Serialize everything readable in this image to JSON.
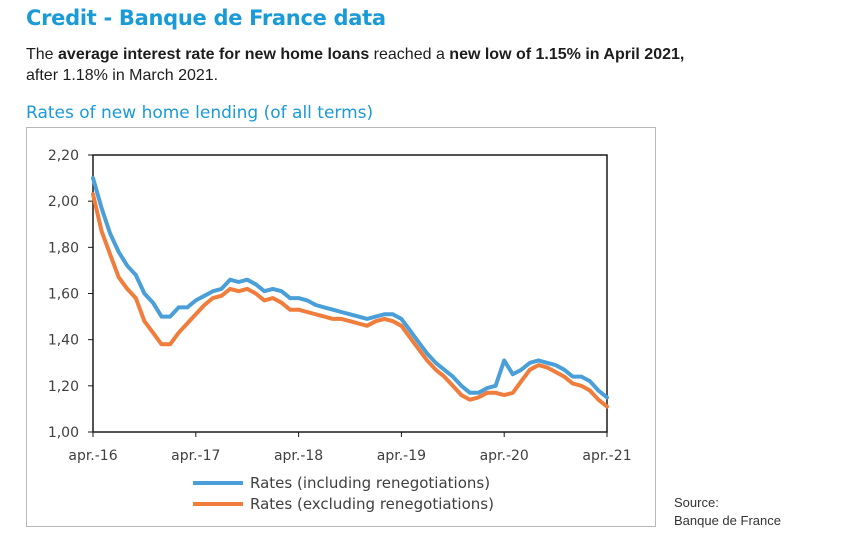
{
  "header": {
    "title": "Credit - Banque de France data",
    "lead_1": "The ",
    "lead_bold_1": "average interest rate for new home loans",
    "lead_2": "  reached a ",
    "lead_bold_2": "new low of 1.15% in April 2021,",
    "lead_3": "after 1.18% in March 2021."
  },
  "source": {
    "line1": "Source:",
    "line2": "Banque de France"
  },
  "chart_data": {
    "type": "line",
    "title": "Rates of new home lending (of all terms)",
    "xlabel": "",
    "ylabel": "",
    "ylim": [
      1.0,
      2.2
    ],
    "yticks": [
      "1,00",
      "1,20",
      "1,40",
      "1,60",
      "1,80",
      "2,00",
      "2,20"
    ],
    "xticks": [
      "apr.-16",
      "apr.-17",
      "apr.-18",
      "apr.-19",
      "apr.-20",
      "apr.-21"
    ],
    "x": [
      "2016-04",
      "2016-05",
      "2016-06",
      "2016-07",
      "2016-08",
      "2016-09",
      "2016-10",
      "2016-11",
      "2016-12",
      "2017-01",
      "2017-02",
      "2017-03",
      "2017-04",
      "2017-05",
      "2017-06",
      "2017-07",
      "2017-08",
      "2017-09",
      "2017-10",
      "2017-11",
      "2017-12",
      "2018-01",
      "2018-02",
      "2018-03",
      "2018-04",
      "2018-05",
      "2018-06",
      "2018-07",
      "2018-08",
      "2018-09",
      "2018-10",
      "2018-11",
      "2018-12",
      "2019-01",
      "2019-02",
      "2019-03",
      "2019-04",
      "2019-05",
      "2019-06",
      "2019-07",
      "2019-08",
      "2019-09",
      "2019-10",
      "2019-11",
      "2019-12",
      "2020-01",
      "2020-02",
      "2020-03",
      "2020-04",
      "2020-05",
      "2020-06",
      "2020-07",
      "2020-08",
      "2020-09",
      "2020-10",
      "2020-11",
      "2020-12",
      "2021-01",
      "2021-02",
      "2021-03",
      "2021-04"
    ],
    "grid": false,
    "legend_position": "bottom",
    "series": [
      {
        "name": "Rates (including renegotiations)",
        "color": "#4a9fd8",
        "values": [
          2.1,
          1.97,
          1.86,
          1.78,
          1.72,
          1.68,
          1.6,
          1.56,
          1.5,
          1.5,
          1.54,
          1.54,
          1.57,
          1.59,
          1.61,
          1.62,
          1.66,
          1.65,
          1.66,
          1.64,
          1.61,
          1.62,
          1.61,
          1.58,
          1.58,
          1.57,
          1.55,
          1.54,
          1.53,
          1.52,
          1.51,
          1.5,
          1.49,
          1.5,
          1.51,
          1.51,
          1.49,
          1.44,
          1.39,
          1.34,
          1.3,
          1.27,
          1.24,
          1.2,
          1.17,
          1.17,
          1.19,
          1.2,
          1.31,
          1.25,
          1.27,
          1.3,
          1.31,
          1.3,
          1.29,
          1.27,
          1.24,
          1.24,
          1.22,
          1.18,
          1.15
        ]
      },
      {
        "name": "Rates (excluding renegotiations)",
        "color": "#f07d3c",
        "values": [
          2.03,
          1.87,
          1.77,
          1.67,
          1.62,
          1.58,
          1.48,
          1.43,
          1.38,
          1.38,
          1.43,
          1.47,
          1.51,
          1.55,
          1.58,
          1.59,
          1.62,
          1.61,
          1.62,
          1.6,
          1.57,
          1.58,
          1.56,
          1.53,
          1.53,
          1.52,
          1.51,
          1.5,
          1.49,
          1.49,
          1.48,
          1.47,
          1.46,
          1.48,
          1.49,
          1.48,
          1.46,
          1.41,
          1.36,
          1.31,
          1.27,
          1.24,
          1.2,
          1.16,
          1.14,
          1.15,
          1.17,
          1.17,
          1.16,
          1.17,
          1.22,
          1.27,
          1.29,
          1.28,
          1.26,
          1.24,
          1.21,
          1.2,
          1.18,
          1.14,
          1.11
        ]
      }
    ]
  }
}
